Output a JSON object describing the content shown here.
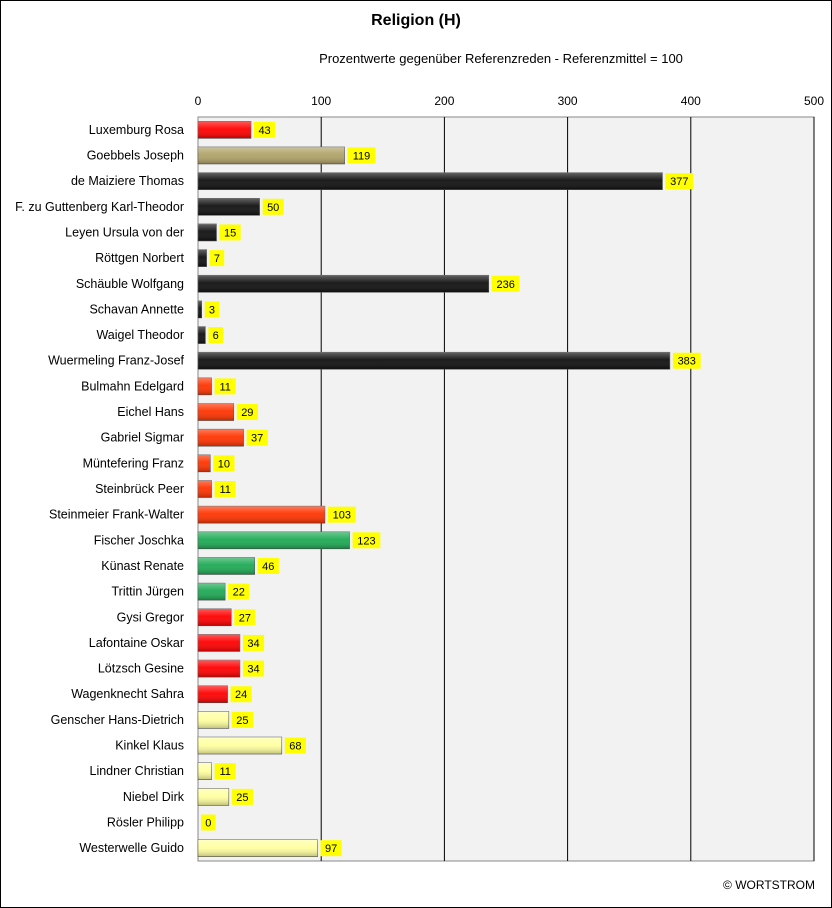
{
  "chart_data": {
    "type": "bar",
    "orientation": "horizontal",
    "title": "Religion (H)",
    "subtitle": "Prozentwerte  gegenüber Referenzreden - Referenzmittel = 100",
    "xlim": [
      0,
      500
    ],
    "xticks": [
      "0",
      "100",
      "200",
      "300",
      "400",
      "500"
    ],
    "grid": true,
    "data_labels": true,
    "categories": [
      "Luxemburg Rosa",
      "Goebbels Joseph",
      "de Maiziere Thomas",
      "F. zu Guttenberg Karl-Theodor",
      "Leyen Ursula von der",
      "Röttgen Norbert",
      "Schäuble Wolfgang",
      "Schavan Annette",
      "Waigel Theodor",
      "Wuermeling Franz-Josef",
      "Bulmahn Edelgard",
      "Eichel Hans",
      "Gabriel Sigmar",
      "Müntefering Franz",
      "Steinbrück Peer",
      "Steinmeier Frank-Walter",
      "Fischer Joschka",
      "Künast Renate",
      "Trittin Jürgen",
      "Gysi Gregor",
      "Lafontaine Oskar",
      "Lötzsch Gesine",
      "Wagenknecht Sahra",
      "Genscher Hans-Dietrich",
      "Kinkel Klaus",
      "Lindner Christian",
      "Niebel Dirk",
      "Rösler Philipp",
      "Westerwelle Guido"
    ],
    "values": [
      43,
      119,
      377,
      50,
      15,
      7,
      236,
      3,
      6,
      383,
      11,
      29,
      37,
      10,
      11,
      103,
      123,
      46,
      22,
      27,
      34,
      34,
      24,
      25,
      68,
      11,
      25,
      0,
      97
    ],
    "colors": [
      "#ff0000",
      "#b0a268",
      "#101010",
      "#101010",
      "#101010",
      "#101010",
      "#101010",
      "#101010",
      "#101010",
      "#101010",
      "#ff3300",
      "#ff3300",
      "#ff3300",
      "#ff3300",
      "#ff3300",
      "#ff3300",
      "#1eaa55",
      "#1eaa55",
      "#1eaa55",
      "#ff0000",
      "#ff0000",
      "#ff0000",
      "#ff0000",
      "#ffffa0",
      "#ffffa0",
      "#ffffa0",
      "#ffffa0",
      "#ffffa0",
      "#ffffa0"
    ],
    "plot_background": "#f2f2f2",
    "label_background": "#ffff00"
  },
  "copyright": "© WORTSTROM"
}
